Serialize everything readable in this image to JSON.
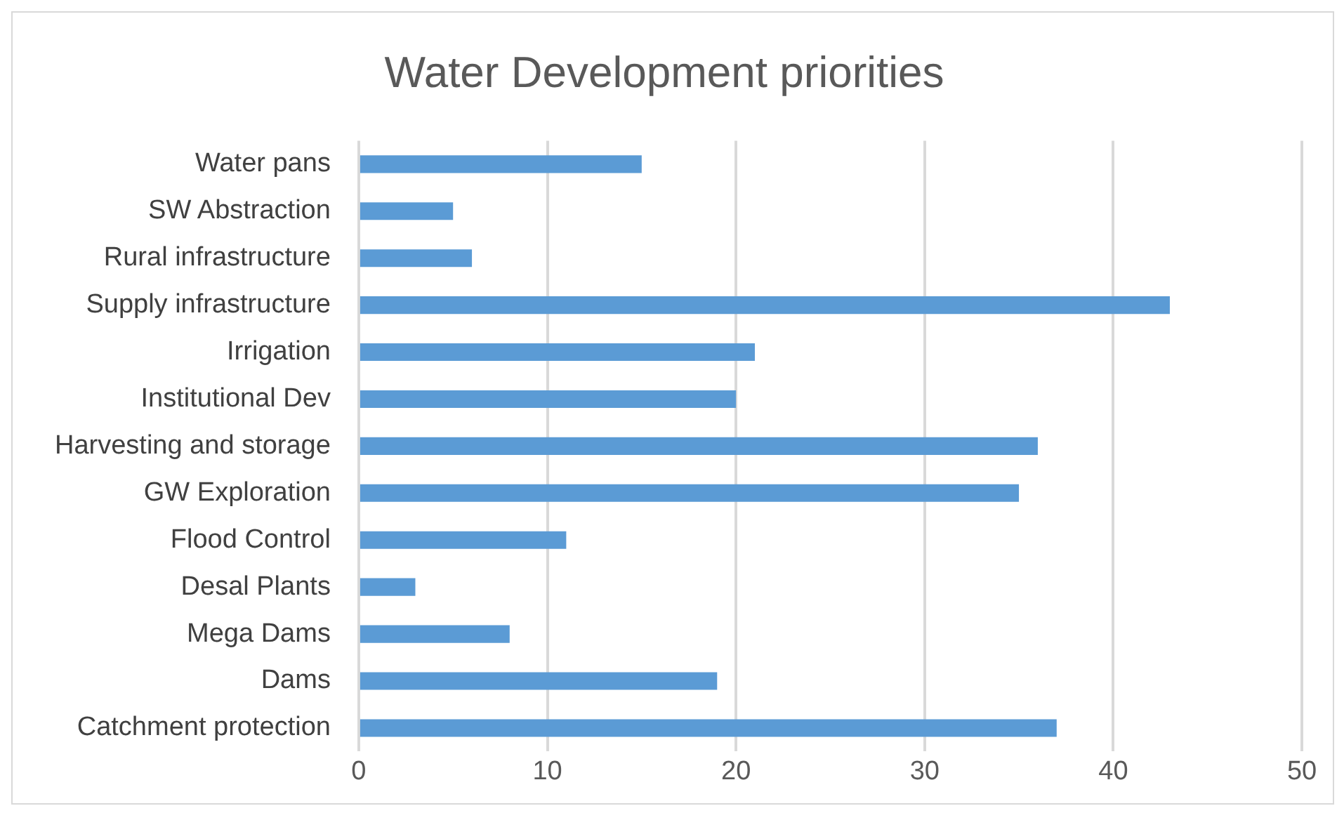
{
  "chart_data": {
    "type": "bar",
    "orientation": "horizontal",
    "title": "Water Development priorities",
    "categories": [
      "Water pans",
      "SW Abstraction",
      "Rural infrastructure",
      "Supply infrastructure",
      "Irrigation",
      "Institutional Dev",
      "Harvesting and storage",
      "GW Exploration",
      "Flood Control",
      "Desal Plants",
      "Mega Dams",
      "Dams",
      "Catchment protection"
    ],
    "values": [
      15,
      5,
      6,
      43,
      21,
      20,
      36,
      35,
      11,
      3,
      8,
      19,
      37
    ],
    "color": "#5b9bd5",
    "xlim": [
      0,
      50
    ],
    "xticks": [
      0,
      10,
      20,
      30,
      40,
      50
    ],
    "grid": "x",
    "legend": false
  }
}
